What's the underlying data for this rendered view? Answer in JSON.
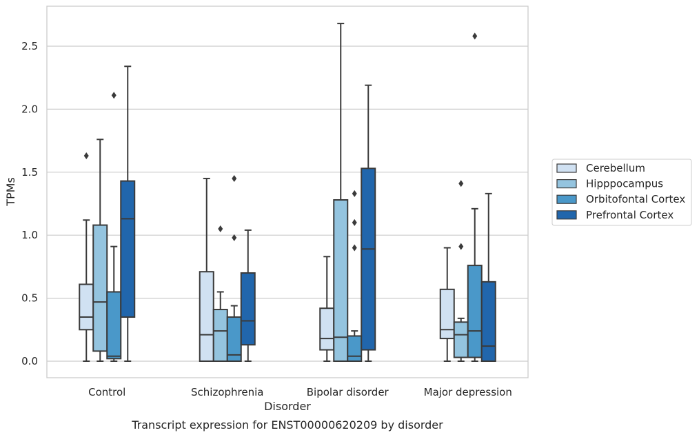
{
  "chart_data": {
    "type": "box",
    "caption": "Transcript expression for ENST00000620209 by disorder",
    "xlabel": "Disorder",
    "ylabel": "TPMs",
    "ylim": [
      -0.13,
      2.82
    ],
    "yticks": [
      "0.0",
      "0.5",
      "1.0",
      "1.5",
      "2.0",
      "2.5"
    ],
    "grid": "horizontal",
    "legend_position": "right",
    "categories": [
      "Control",
      "Schizophrenia",
      "Bipolar disorder",
      "Major depression"
    ],
    "series": [
      {
        "name": "Cerebellum",
        "color": "#d0e1f2",
        "boxes": [
          {
            "whislo": 0.0,
            "q1": 0.25,
            "med": 0.35,
            "q3": 0.61,
            "whishi": 1.12,
            "fliers": [
              1.63
            ]
          },
          {
            "whislo": 0.0,
            "q1": 0.0,
            "med": 0.21,
            "q3": 0.71,
            "whishi": 1.45,
            "fliers": []
          },
          {
            "whislo": 0.0,
            "q1": 0.09,
            "med": 0.18,
            "q3": 0.42,
            "whishi": 0.83,
            "fliers": []
          },
          {
            "whislo": 0.0,
            "q1": 0.18,
            "med": 0.25,
            "q3": 0.57,
            "whishi": 0.9,
            "fliers": []
          }
        ]
      },
      {
        "name": "Hipppocampus",
        "color": "#94c4df",
        "boxes": [
          {
            "whislo": 0.0,
            "q1": 0.08,
            "med": 0.47,
            "q3": 1.08,
            "whishi": 1.76,
            "fliers": []
          },
          {
            "whislo": 0.0,
            "q1": 0.0,
            "med": 0.24,
            "q3": 0.41,
            "whishi": 0.55,
            "fliers": [
              1.05
            ]
          },
          {
            "whislo": 0.0,
            "q1": 0.0,
            "med": 0.19,
            "q3": 1.28,
            "whishi": 2.68,
            "fliers": []
          },
          {
            "whislo": 0.0,
            "q1": 0.03,
            "med": 0.21,
            "q3": 0.31,
            "whishi": 0.34,
            "fliers": [
              0.91,
              1.41
            ]
          }
        ]
      },
      {
        "name": "Orbitofontal Cortex",
        "color": "#4a98c9",
        "boxes": [
          {
            "whislo": 0.0,
            "q1": 0.02,
            "med": 0.04,
            "q3": 0.55,
            "whishi": 0.91,
            "fliers": [
              2.11
            ]
          },
          {
            "whislo": 0.0,
            "q1": 0.0,
            "med": 0.05,
            "q3": 0.35,
            "whishi": 0.44,
            "fliers": [
              0.98,
              1.45
            ]
          },
          {
            "whislo": 0.0,
            "q1": 0.0,
            "med": 0.04,
            "q3": 0.2,
            "whishi": 0.24,
            "fliers": [
              0.9,
              1.1,
              1.33
            ]
          },
          {
            "whislo": 0.0,
            "q1": 0.03,
            "med": 0.24,
            "q3": 0.76,
            "whishi": 1.21,
            "fliers": [
              2.58
            ]
          }
        ]
      },
      {
        "name": "Prefrontal Cortex",
        "color": "#2166ac",
        "boxes": [
          {
            "whislo": 0.0,
            "q1": 0.35,
            "med": 1.13,
            "q3": 1.43,
            "whishi": 2.34,
            "fliers": []
          },
          {
            "whislo": 0.0,
            "q1": 0.13,
            "med": 0.32,
            "q3": 0.7,
            "whishi": 1.04,
            "fliers": []
          },
          {
            "whislo": 0.0,
            "q1": 0.09,
            "med": 0.89,
            "q3": 1.53,
            "whishi": 2.19,
            "fliers": []
          },
          {
            "whislo": 0.0,
            "q1": 0.0,
            "med": 0.12,
            "q3": 0.63,
            "whishi": 1.33,
            "fliers": []
          }
        ]
      }
    ]
  }
}
